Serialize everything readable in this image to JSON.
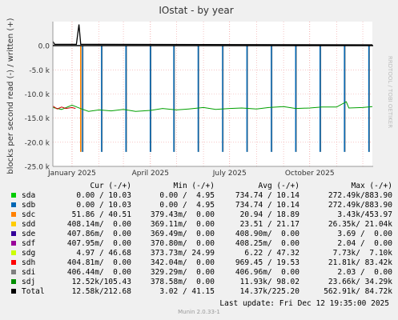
{
  "chart_data": {
    "type": "line",
    "title": "IOstat - by year",
    "ylabel": "blocks per second read (-) / written (+)",
    "ylim": [
      -25000,
      5000
    ],
    "yticks": [
      {
        "v": 0,
        "label": "0.0"
      },
      {
        "v": -5000,
        "label": "-5.0 k"
      },
      {
        "v": -10000,
        "label": "-10.0 k"
      },
      {
        "v": -15000,
        "label": "-15.0 k"
      },
      {
        "v": -20000,
        "label": "-20.0 k"
      },
      {
        "v": -25000,
        "label": "-25.0 k"
      }
    ],
    "xlim": [
      "2024-12-10",
      "2025-12-12"
    ],
    "xticks": [
      {
        "date": "2025-01-01",
        "label": "January 2025"
      },
      {
        "date": "2025-04-01",
        "label": "April 2025"
      },
      {
        "date": "2025-07-01",
        "label": "July 2025"
      },
      {
        "date": "2025-10-01",
        "label": "October 2025"
      }
    ],
    "spike_dates": [
      "2025-01-13",
      "2025-02-04",
      "2025-03-04",
      "2025-04-01",
      "2025-04-28",
      "2025-05-26",
      "2025-06-23",
      "2025-07-21",
      "2025-08-18",
      "2025-09-15",
      "2025-10-13",
      "2025-11-10",
      "2025-12-08"
    ],
    "spike_read_min": -22000,
    "series": [
      {
        "name": "sdj",
        "color": "#00a000",
        "type": "read",
        "points": [
          [
            "2024-12-10",
            -12800
          ],
          [
            "2024-12-20",
            -13200
          ],
          [
            "2025-01-01",
            -12300
          ],
          [
            "2025-01-12",
            -13100
          ],
          [
            "2025-01-20",
            -13600
          ],
          [
            "2025-02-01",
            -13300
          ],
          [
            "2025-02-15",
            -13500
          ],
          [
            "2025-03-01",
            -13200
          ],
          [
            "2025-03-15",
            -13600
          ],
          [
            "2025-04-01",
            -13400
          ],
          [
            "2025-04-15",
            -13000
          ],
          [
            "2025-05-01",
            -13300
          ],
          [
            "2025-05-15",
            -13100
          ],
          [
            "2025-06-01",
            -12800
          ],
          [
            "2025-06-15",
            -13200
          ],
          [
            "2025-07-01",
            -13000
          ],
          [
            "2025-07-15",
            -12900
          ],
          [
            "2025-08-01",
            -13100
          ],
          [
            "2025-08-15",
            -12800
          ],
          [
            "2025-09-01",
            -12600
          ],
          [
            "2025-09-15",
            -13000
          ],
          [
            "2025-10-01",
            -12900
          ],
          [
            "2025-10-15",
            -12700
          ],
          [
            "2025-11-01",
            -12700
          ],
          [
            "2025-11-12",
            -11600
          ],
          [
            "2025-11-15",
            -12900
          ],
          [
            "2025-12-01",
            -12800
          ],
          [
            "2025-12-12",
            -12600
          ]
        ]
      },
      {
        "name": "sdh",
        "color": "#cc0000",
        "type": "read",
        "points": [
          [
            "2024-12-10",
            -12500
          ],
          [
            "2024-12-15",
            -13100
          ],
          [
            "2024-12-20",
            -12700
          ],
          [
            "2024-12-25",
            -13000
          ],
          [
            "2025-01-01",
            -12800
          ],
          [
            "2025-01-05",
            -13000
          ]
        ]
      },
      {
        "name": "Total",
        "color": "#000000",
        "type": "write",
        "points": [
          [
            "2024-12-10",
            900
          ],
          [
            "2024-12-12",
            300
          ],
          [
            "2025-01-06",
            300
          ],
          [
            "2025-01-09",
            4400
          ],
          [
            "2025-01-11",
            300
          ],
          [
            "2025-12-12",
            200
          ]
        ]
      }
    ]
  },
  "side_label": "RRDTOOL / TOBI OETIKER",
  "legend": {
    "headers": {
      "cur": "Cur (-/+)",
      "min": "Min (-/+)",
      "avg": "Avg (-/+)",
      "max": "Max (-/+)"
    },
    "rows": [
      {
        "name": "sda",
        "color": "#00cc00",
        "cur": "0.00 / 10.03",
        "min": "0.00 /  4.95",
        "avg": "734.74 / 10.14",
        "max": "272.49k/883.90"
      },
      {
        "name": "sdb",
        "color": "#0066b3",
        "cur": "0.00 / 10.03",
        "min": "0.00 /  4.95",
        "avg": "734.74 / 10.14",
        "max": "272.49k/883.90"
      },
      {
        "name": "sdc",
        "color": "#ff8000",
        "cur": "51.86 / 40.51",
        "min": "379.43m/  0.00",
        "avg": "20.94 / 18.89",
        "max": "3.43k/453.97"
      },
      {
        "name": "sdd",
        "color": "#ffcc00",
        "cur": "408.14m/  0.00",
        "min": "369.11m/  0.00",
        "avg": "23.51 / 21.17",
        "max": "26.35k/ 21.04k"
      },
      {
        "name": "sde",
        "color": "#330099",
        "cur": "407.86m/  0.00",
        "min": "369.49m/  0.00",
        "avg": "408.90m/  0.00",
        "max": "3.69 /  0.00"
      },
      {
        "name": "sdf",
        "color": "#990099",
        "cur": "407.95m/  0.00",
        "min": "370.80m/  0.00",
        "avg": "408.25m/  0.00",
        "max": "2.04 /  0.00"
      },
      {
        "name": "sdg",
        "color": "#ccff00",
        "cur": "4.97 / 46.68",
        "min": "373.73m/ 24.99",
        "avg": "6.22 / 47.32",
        "max": "7.73k/  7.10k"
      },
      {
        "name": "sdh",
        "color": "#ff0000",
        "cur": "404.81m/  0.00",
        "min": "342.04m/  0.00",
        "avg": "969.45 / 19.53",
        "max": "21.81k/ 83.42k"
      },
      {
        "name": "sdi",
        "color": "#808080",
        "cur": "406.44m/  0.00",
        "min": "329.29m/  0.00",
        "avg": "406.96m/  0.00",
        "max": "2.03 /  0.00"
      },
      {
        "name": "sdj",
        "color": "#008f00",
        "cur": "12.52k/105.43",
        "min": "378.58m/  0.00",
        "avg": "11.93k/ 98.02",
        "max": "23.66k/ 34.29k"
      },
      {
        "name": "Total",
        "color": "#000000",
        "cur": "12.58k/212.68",
        "min": "3.02 / 41.15",
        "avg": "14.37k/225.20",
        "max": "562.91k/ 84.72k"
      }
    ]
  },
  "footer": {
    "last_update": "Last update:  Fri Dec 12 19:35:00 2025",
    "version": "Munin 2.0.33-1"
  }
}
